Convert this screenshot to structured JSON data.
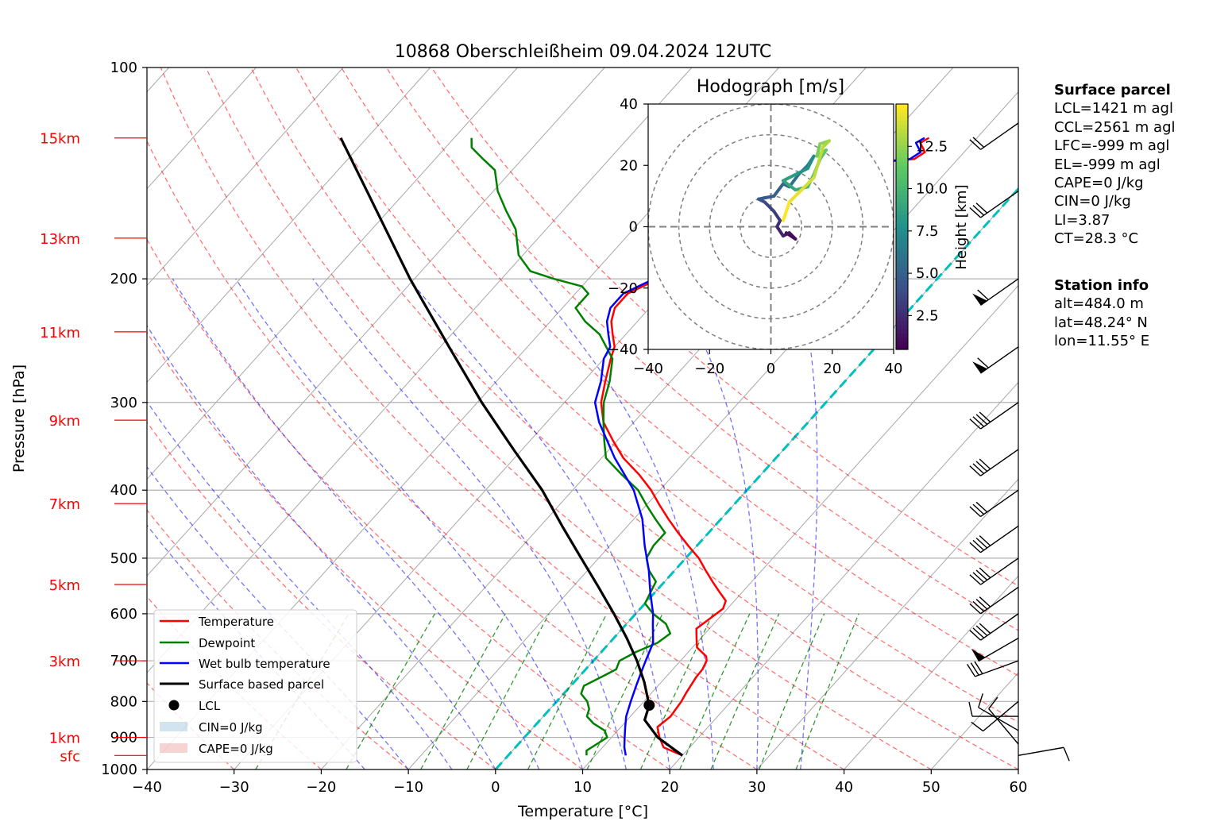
{
  "title": "10868 Oberschleißheim 09.04.2024 12UTC",
  "xlabel": "Temperature [°C]",
  "ylabel": "Pressure [hPa]",
  "colors": {
    "temperature": "#ff0000",
    "dewpoint": "#008000",
    "wetbulb": "#0000ff",
    "parcel": "#000000",
    "dry_adiabat": "#ff0000",
    "moist_adiabat": "#0000ff",
    "mixing_ratio": "#008000",
    "isotherm": "#808080",
    "zero_isotherm": "#00bfbf",
    "height_label": "#ff0000",
    "cin_fill": "#1f77b4",
    "cape_fill": "#d62728"
  },
  "legend": {
    "temperature": "Temperature",
    "dewpoint": "Dewpoint",
    "wetbulb": "Wet bulb temperature",
    "parcel": "Surface based parcel",
    "lcl": "LCL",
    "cin": "CIN=0 J/kg",
    "cape": "CAPE=0 J/kg"
  },
  "height_labels": [
    {
      "label": "sfc",
      "p": 955
    },
    {
      "label": "1km",
      "p": 900
    },
    {
      "label": "3km",
      "p": 700
    },
    {
      "label": "5km",
      "p": 545
    },
    {
      "label": "7km",
      "p": 418
    },
    {
      "label": "9km",
      "p": 318
    },
    {
      "label": "11km",
      "p": 238
    },
    {
      "label": "13km",
      "p": 175
    },
    {
      "label": "15km",
      "p": 126
    }
  ],
  "surface_parcel": {
    "header": "Surface parcel",
    "lines": [
      "LCL=1421 m agl",
      "CCL=2561 m agl",
      "LFC=-999 m agl",
      "EL=-999 m agl",
      "CAPE=0 J/kg",
      "CIN=0 J/kg",
      "LI=3.87",
      "CT=28.3 °C"
    ]
  },
  "station_info": {
    "header": "Station info",
    "lines": [
      "alt=484.0 m",
      "lat=48.24° N",
      "lon=11.55° E"
    ]
  },
  "hodograph": {
    "title": "Hodograph [m/s]",
    "colorbar_label": "Height [km]",
    "colorbar_ticks": [
      "2.5",
      "5.0",
      "7.5",
      "10.0",
      "12.5"
    ],
    "colorbar_values": [
      2.5,
      5.0,
      7.5,
      10.0,
      12.5
    ],
    "colorbar_range": [
      0.5,
      15.0
    ],
    "ticks": [
      -40,
      -20,
      0,
      20,
      40
    ],
    "ring_speeds": [
      10,
      20,
      30,
      40
    ],
    "points": [
      {
        "u": 5,
        "v": -2,
        "z": 0.5
      },
      {
        "u": 8,
        "v": -4,
        "z": 1.0
      },
      {
        "u": 6,
        "v": -2,
        "z": 1.5
      },
      {
        "u": 4,
        "v": -3,
        "z": 2.0
      },
      {
        "u": 2,
        "v": 0,
        "z": 2.5
      },
      {
        "u": 3,
        "v": 2,
        "z": 3.0
      },
      {
        "u": 1,
        "v": 5,
        "z": 3.5
      },
      {
        "u": -2,
        "v": 8,
        "z": 4.0
      },
      {
        "u": -4,
        "v": 9,
        "z": 4.5
      },
      {
        "u": 1,
        "v": 10,
        "z": 5.0
      },
      {
        "u": 4,
        "v": 14,
        "z": 5.5
      },
      {
        "u": 6,
        "v": 13,
        "z": 6.0
      },
      {
        "u": 9,
        "v": 17,
        "z": 6.5
      },
      {
        "u": 12,
        "v": 20,
        "z": 7.0
      },
      {
        "u": 14,
        "v": 23,
        "z": 7.5
      },
      {
        "u": 12,
        "v": 19,
        "z": 8.0
      },
      {
        "u": 8,
        "v": 17,
        "z": 8.5
      },
      {
        "u": 4,
        "v": 15,
        "z": 9.0
      },
      {
        "u": 8,
        "v": 12,
        "z": 9.5
      },
      {
        "u": 12,
        "v": 13,
        "z": 10.0
      },
      {
        "u": 14,
        "v": 17,
        "z": 10.5
      },
      {
        "u": 16,
        "v": 22,
        "z": 11.0
      },
      {
        "u": 18,
        "v": 25,
        "z": 11.5
      },
      {
        "u": 15,
        "v": 23,
        "z": 12.0
      },
      {
        "u": 16,
        "v": 27,
        "z": 12.5
      },
      {
        "u": 19,
        "v": 28,
        "z": 13.0
      },
      {
        "u": 17,
        "v": 26,
        "z": 13.5
      },
      {
        "u": 14,
        "v": 16,
        "z": 14.0
      },
      {
        "u": 10,
        "v": 12,
        "z": 14.5
      },
      {
        "u": 6,
        "v": 8,
        "z": 15.0
      },
      {
        "u": 4,
        "v": 2,
        "z": 15.0
      }
    ]
  },
  "chart_data": {
    "type": "line",
    "chart_kind": "skew-T log-p diagram",
    "title": "10868 Oberschleißheim 09.04.2024 12UTC",
    "xlabel": "Temperature [°C]",
    "ylabel": "Pressure [hPa]",
    "xlim": [
      -40,
      60
    ],
    "ylim": [
      1000,
      100
    ],
    "yscale": "log",
    "x_ticks": [
      -40,
      -30,
      -20,
      -10,
      0,
      10,
      20,
      30,
      40,
      50,
      60
    ],
    "y_ticks": [
      1000,
      900,
      800,
      700,
      600,
      500,
      400,
      300,
      200,
      100
    ],
    "grid": true,
    "legend_position": "lower-left",
    "series": [
      {
        "name": "Temperature",
        "key": "temperature",
        "points": [
          [
            955,
            20.0
          ],
          [
            930,
            17.0
          ],
          [
            900,
            15.5
          ],
          [
            870,
            14.2
          ],
          [
            840,
            14.6
          ],
          [
            800,
            14.3
          ],
          [
            780,
            14.0
          ],
          [
            740,
            13.5
          ],
          [
            720,
            13.4
          ],
          [
            700,
            13.0
          ],
          [
            690,
            12.5
          ],
          [
            670,
            10.5
          ],
          [
            650,
            9.5
          ],
          [
            630,
            8.5
          ],
          [
            610,
            9.0
          ],
          [
            590,
            9.5
          ],
          [
            575,
            9.0
          ],
          [
            560,
            7.5
          ],
          [
            540,
            5.5
          ],
          [
            520,
            3.5
          ],
          [
            500,
            1.5
          ],
          [
            480,
            -1.0
          ],
          [
            460,
            -3.5
          ],
          [
            440,
            -6.0
          ],
          [
            420,
            -8.5
          ],
          [
            400,
            -11.0
          ],
          [
            380,
            -14.0
          ],
          [
            360,
            -17.5
          ],
          [
            340,
            -20.5
          ],
          [
            320,
            -23.5
          ],
          [
            300,
            -25.8
          ],
          [
            280,
            -27.5
          ],
          [
            260,
            -29.2
          ],
          [
            250,
            -30.0
          ],
          [
            240,
            -31.5
          ],
          [
            230,
            -33.0
          ],
          [
            220,
            -34.0
          ],
          [
            210,
            -34.0
          ],
          [
            200,
            -32.0
          ],
          [
            190,
            -30.5
          ],
          [
            180,
            -28.0
          ],
          [
            175,
            -27.0
          ],
          [
            170,
            -27.5
          ],
          [
            165,
            -29.5
          ],
          [
            160,
            -31.0
          ],
          [
            150,
            -32.5
          ],
          [
            145,
            -33.0
          ],
          [
            140,
            -30.0
          ],
          [
            137,
            -20.0
          ],
          [
            135,
            -15.0
          ],
          [
            132,
            -14.5
          ],
          [
            128,
            -16.0
          ],
          [
            126,
            -15.5
          ]
        ]
      },
      {
        "name": "Dewpoint",
        "key": "dewpoint",
        "points": [
          [
            955,
            9.0
          ],
          [
            940,
            8.5
          ],
          [
            920,
            9.0
          ],
          [
            900,
            9.5
          ],
          [
            880,
            8.5
          ],
          [
            860,
            6.5
          ],
          [
            840,
            5.0
          ],
          [
            820,
            4.5
          ],
          [
            800,
            3.5
          ],
          [
            780,
            2.0
          ],
          [
            760,
            1.5
          ],
          [
            740,
            2.5
          ],
          [
            720,
            3.5
          ],
          [
            700,
            3.0
          ],
          [
            680,
            4.0
          ],
          [
            660,
            5.5
          ],
          [
            640,
            6.0
          ],
          [
            620,
            4.5
          ],
          [
            600,
            2.0
          ],
          [
            580,
            0.0
          ],
          [
            560,
            -0.5
          ],
          [
            540,
            -1.0
          ],
          [
            520,
            -3.0
          ],
          [
            500,
            -4.5
          ],
          [
            480,
            -5.0
          ],
          [
            460,
            -5.0
          ],
          [
            440,
            -7.5
          ],
          [
            420,
            -10.0
          ],
          [
            400,
            -12.5
          ],
          [
            380,
            -16.0
          ],
          [
            360,
            -19.5
          ],
          [
            340,
            -21.5
          ],
          [
            320,
            -23.5
          ],
          [
            300,
            -25.5
          ],
          [
            280,
            -27.0
          ],
          [
            260,
            -29.0
          ],
          [
            240,
            -33.0
          ],
          [
            230,
            -36.0
          ],
          [
            220,
            -38.5
          ],
          [
            210,
            -38.5
          ],
          [
            205,
            -40.0
          ],
          [
            200,
            -44.0
          ],
          [
            195,
            -47.5
          ],
          [
            185,
            -50.5
          ],
          [
            170,
            -53.5
          ],
          [
            160,
            -56.5
          ],
          [
            150,
            -59.5
          ],
          [
            140,
            -62.0
          ],
          [
            135,
            -64.5
          ],
          [
            130,
            -67.0
          ],
          [
            126,
            -68.0
          ]
        ]
      },
      {
        "name": "Wet bulb temperature",
        "key": "wetbulb",
        "points": [
          [
            955,
            13.5
          ],
          [
            930,
            12.5
          ],
          [
            900,
            11.5
          ],
          [
            870,
            10.5
          ],
          [
            840,
            9.5
          ],
          [
            800,
            8.5
          ],
          [
            760,
            7.5
          ],
          [
            720,
            6.5
          ],
          [
            700,
            6.0
          ],
          [
            660,
            5.0
          ],
          [
            620,
            3.0
          ],
          [
            600,
            2.0
          ],
          [
            560,
            -0.5
          ],
          [
            520,
            -3.0
          ],
          [
            480,
            -6.0
          ],
          [
            440,
            -9.0
          ],
          [
            400,
            -13.0
          ],
          [
            360,
            -18.5
          ],
          [
            320,
            -24.0
          ],
          [
            300,
            -26.5
          ],
          [
            280,
            -28.0
          ],
          [
            260,
            -30.0
          ],
          [
            250,
            -30.5
          ],
          [
            240,
            -32.0
          ],
          [
            230,
            -33.5
          ],
          [
            220,
            -34.5
          ],
          [
            210,
            -34.5
          ],
          [
            200,
            -32.5
          ],
          [
            190,
            -31.0
          ],
          [
            180,
            -28.5
          ],
          [
            175,
            -27.5
          ],
          [
            170,
            -28.0
          ],
          [
            165,
            -30.0
          ],
          [
            160,
            -31.5
          ],
          [
            150,
            -33.0
          ],
          [
            145,
            -33.5
          ],
          [
            140,
            -30.5
          ],
          [
            137,
            -20.5
          ],
          [
            135,
            -15.5
          ],
          [
            132,
            -15.0
          ],
          [
            128,
            -16.5
          ],
          [
            126,
            -16.0
          ]
        ]
      },
      {
        "name": "Surface based parcel",
        "key": "parcel",
        "points": [
          [
            955,
            20.0
          ],
          [
            900,
            15.3
          ],
          [
            850,
            12.0
          ],
          [
            810,
            11.0
          ],
          [
            750,
            8.0
          ],
          [
            700,
            5.0
          ],
          [
            650,
            1.5
          ],
          [
            600,
            -2.5
          ],
          [
            550,
            -7.0
          ],
          [
            500,
            -12.0
          ],
          [
            450,
            -17.5
          ],
          [
            400,
            -23.5
          ],
          [
            350,
            -31.0
          ],
          [
            300,
            -39.5
          ],
          [
            250,
            -49.0
          ],
          [
            200,
            -60.5
          ],
          [
            175,
            -67.0
          ],
          [
            150,
            -74.5
          ],
          [
            126,
            -83.0
          ]
        ]
      }
    ],
    "lcl": {
      "p": 810,
      "t": 11.0,
      "label": "LCL"
    },
    "cin": 0,
    "cape": 0,
    "wind_barbs": [
      {
        "p": 955,
        "speed_kt": 10,
        "dir": 80
      },
      {
        "p": 920,
        "speed_kt": 10,
        "dir": 320
      },
      {
        "p": 880,
        "speed_kt": 10,
        "dir": 300
      },
      {
        "p": 840,
        "speed_kt": 10,
        "dir": 270
      },
      {
        "p": 800,
        "speed_kt": 10,
        "dir": 230
      },
      {
        "p": 700,
        "speed_kt": 30,
        "dir": 250
      },
      {
        "p": 650,
        "speed_kt": 50,
        "dir": 240
      },
      {
        "p": 600,
        "speed_kt": 40,
        "dir": 235
      },
      {
        "p": 550,
        "speed_kt": 40,
        "dir": 235
      },
      {
        "p": 500,
        "speed_kt": 40,
        "dir": 235
      },
      {
        "p": 450,
        "speed_kt": 40,
        "dir": 235
      },
      {
        "p": 400,
        "speed_kt": 30,
        "dir": 235
      },
      {
        "p": 350,
        "speed_kt": 40,
        "dir": 235
      },
      {
        "p": 300,
        "speed_kt": 40,
        "dir": 235
      },
      {
        "p": 250,
        "speed_kt": 60,
        "dir": 235
      },
      {
        "p": 200,
        "speed_kt": 60,
        "dir": 235
      },
      {
        "p": 150,
        "speed_kt": 30,
        "dir": 235
      },
      {
        "p": 120,
        "speed_kt": 20,
        "dir": 235
      }
    ]
  }
}
